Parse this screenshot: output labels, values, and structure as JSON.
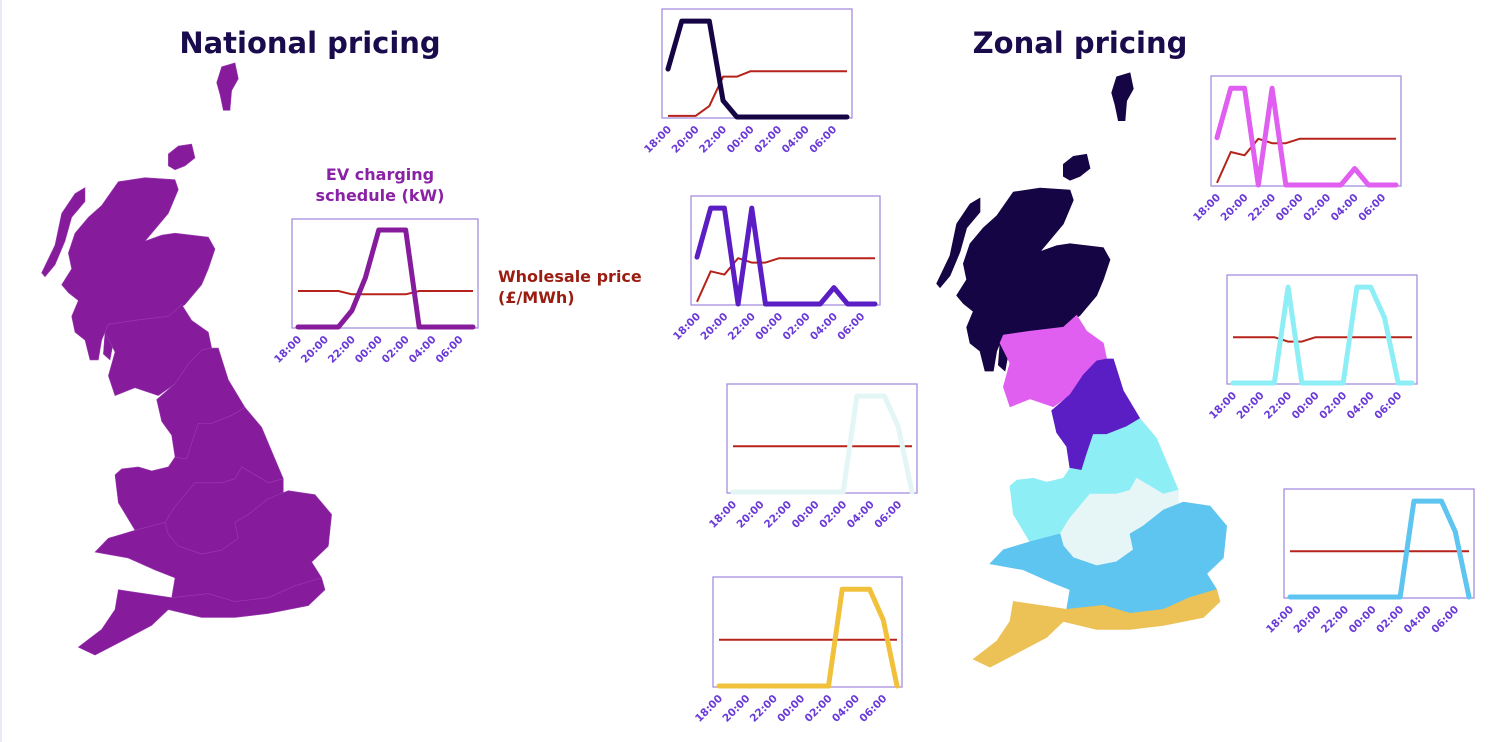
{
  "national": {
    "title": "National pricing",
    "map_color": "#861c9b",
    "ev_label": "EV charging schedule (kW)",
    "ev_label_line1": "EV charging",
    "ev_label_line2": "schedule (kW)",
    "price_label_line1": "Wholesale price",
    "price_label_line2": "(£/MWh)"
  },
  "zonal": {
    "title": "Zonal pricing",
    "zones": [
      {
        "zone": "north-scotland",
        "color": "#160544"
      },
      {
        "zone": "south-scotland",
        "color": "#e05ef0"
      },
      {
        "zone": "north-england",
        "color": "#5a1ec4"
      },
      {
        "zone": "north-wales-and-yorkshire",
        "color": "#8eeef5"
      },
      {
        "zone": "midlands",
        "color": "#e6f6f6"
      },
      {
        "zone": "south-wales-and-south-east",
        "color": "#5ec4f0"
      },
      {
        "zone": "south-west-and-south-coast",
        "color": "#ecc155"
      }
    ]
  },
  "colors": {
    "price_line": "#b5231a",
    "chart_border": "#a58fe0",
    "tick_label": "#6a3ad8"
  },
  "chart_data": [
    {
      "type": "line",
      "id": "national",
      "x": [
        "18:00",
        "19:00",
        "20:00",
        "21:00",
        "22:00",
        "23:00",
        "00:00",
        "01:00",
        "02:00",
        "03:00",
        "04:00",
        "05:00",
        "06:00",
        "07:00"
      ],
      "tick_labels": [
        "18:00",
        "20:00",
        "22:00",
        "00:00",
        "02:00",
        "04:00",
        "06:00"
      ],
      "value_scale": "relative 0-1, no y-axis printed",
      "ev_color": "#861c9b",
      "series": [
        {
          "name": "EV charging schedule (kW)",
          "values": [
            0,
            0,
            0,
            0,
            0.15,
            0.45,
            0.89,
            0.89,
            0.89,
            0,
            0,
            0,
            0,
            0
          ]
        },
        {
          "name": "Wholesale price (£/MWh)",
          "values": [
            0.33,
            0.33,
            0.33,
            0.33,
            0.3,
            0.3,
            0.3,
            0.3,
            0.3,
            0.33,
            0.33,
            0.33,
            0.33,
            0.33
          ]
        }
      ]
    },
    {
      "type": "line",
      "id": "zone-north-scotland",
      "x": [
        "18:00",
        "19:00",
        "20:00",
        "21:00",
        "22:00",
        "23:00",
        "00:00",
        "01:00",
        "02:00",
        "03:00",
        "04:00",
        "05:00",
        "06:00",
        "07:00"
      ],
      "tick_labels": [
        "18:00",
        "20:00",
        "22:00",
        "00:00",
        "02:00",
        "04:00",
        "06:00"
      ],
      "ev_color": "#160544",
      "series": [
        {
          "name": "EV charging schedule (kW)",
          "values": [
            0.44,
            0.88,
            0.88,
            0.88,
            0.15,
            0,
            0,
            0,
            0,
            0,
            0,
            0,
            0,
            0
          ]
        },
        {
          "name": "Wholesale price (£/MWh)",
          "values": [
            0.01,
            0.01,
            0.01,
            0.1,
            0.37,
            0.37,
            0.42,
            0.42,
            0.42,
            0.42,
            0.42,
            0.42,
            0.42,
            0.42
          ]
        }
      ]
    },
    {
      "type": "line",
      "id": "zone-north-england",
      "x": [
        "18:00",
        "19:00",
        "20:00",
        "21:00",
        "22:00",
        "23:00",
        "00:00",
        "01:00",
        "02:00",
        "03:00",
        "04:00",
        "05:00",
        "06:00",
        "07:00"
      ],
      "tick_labels": [
        "18:00",
        "20:00",
        "22:00",
        "00:00",
        "02:00",
        "04:00",
        "06:00"
      ],
      "ev_color": "#5a1ec4",
      "series": [
        {
          "name": "EV charging schedule (kW)",
          "values": [
            0.43,
            0.88,
            0.88,
            0,
            0.88,
            0,
            0,
            0,
            0,
            0,
            0.15,
            0,
            0,
            0
          ]
        },
        {
          "name": "Wholesale price (£/MWh)",
          "values": [
            0.02,
            0.3,
            0.27,
            0.42,
            0.38,
            0.38,
            0.42,
            0.42,
            0.42,
            0.42,
            0.42,
            0.42,
            0.42,
            0.42
          ]
        }
      ]
    },
    {
      "type": "line",
      "id": "zone-midlands",
      "x": [
        "18:00",
        "19:00",
        "20:00",
        "21:00",
        "22:00",
        "23:00",
        "00:00",
        "01:00",
        "02:00",
        "03:00",
        "04:00",
        "05:00",
        "06:00",
        "07:00"
      ],
      "tick_labels": [
        "18:00",
        "20:00",
        "22:00",
        "00:00",
        "02:00",
        "04:00",
        "06:00"
      ],
      "ev_color": "#e3f5f5",
      "series": [
        {
          "name": "EV charging schedule (kW)",
          "values": [
            0,
            0,
            0,
            0,
            0,
            0,
            0,
            0,
            0,
            0.88,
            0.88,
            0.88,
            0.6,
            0
          ]
        },
        {
          "name": "Wholesale price (£/MWh)",
          "values": [
            0.42,
            0.42,
            0.42,
            0.42,
            0.42,
            0.42,
            0.42,
            0.42,
            0.42,
            0.42,
            0.42,
            0.42,
            0.42,
            0.42
          ]
        }
      ]
    },
    {
      "type": "line",
      "id": "zone-south-west",
      "x": [
        "18:00",
        "19:00",
        "20:00",
        "21:00",
        "22:00",
        "23:00",
        "00:00",
        "01:00",
        "02:00",
        "03:00",
        "04:00",
        "05:00",
        "06:00",
        "07:00"
      ],
      "tick_labels": [
        "18:00",
        "20:00",
        "22:00",
        "00:00",
        "02:00",
        "04:00",
        "06:00"
      ],
      "ev_color": "#f2c13c",
      "series": [
        {
          "name": "EV charging schedule (kW)",
          "values": [
            0,
            0,
            0,
            0,
            0,
            0,
            0,
            0,
            0,
            0.88,
            0.88,
            0.88,
            0.6,
            0
          ]
        },
        {
          "name": "Wholesale price (£/MWh)",
          "values": [
            0.42,
            0.42,
            0.42,
            0.42,
            0.42,
            0.42,
            0.42,
            0.42,
            0.42,
            0.42,
            0.42,
            0.42,
            0.42,
            0.42
          ]
        }
      ]
    },
    {
      "type": "line",
      "id": "zone-south-scotland",
      "x": [
        "18:00",
        "19:00",
        "20:00",
        "21:00",
        "22:00",
        "23:00",
        "00:00",
        "01:00",
        "02:00",
        "03:00",
        "04:00",
        "05:00",
        "06:00",
        "07:00"
      ],
      "tick_labels": [
        "18:00",
        "20:00",
        "22:00",
        "00:00",
        "02:00",
        "04:00",
        "06:00"
      ],
      "ev_color": "#e05ef0",
      "series": [
        {
          "name": "EV charging schedule (kW)",
          "values": [
            0.43,
            0.88,
            0.88,
            0,
            0.88,
            0,
            0,
            0,
            0,
            0,
            0.15,
            0,
            0,
            0
          ]
        },
        {
          "name": "Wholesale price (£/MWh)",
          "values": [
            0.02,
            0.3,
            0.27,
            0.42,
            0.38,
            0.38,
            0.42,
            0.42,
            0.42,
            0.42,
            0.42,
            0.42,
            0.42,
            0.42
          ]
        }
      ]
    },
    {
      "type": "line",
      "id": "zone-north-wales-yorkshire",
      "x": [
        "18:00",
        "19:00",
        "20:00",
        "21:00",
        "22:00",
        "23:00",
        "00:00",
        "01:00",
        "02:00",
        "03:00",
        "04:00",
        "05:00",
        "06:00",
        "07:00"
      ],
      "tick_labels": [
        "18:00",
        "20:00",
        "22:00",
        "00:00",
        "02:00",
        "04:00",
        "06:00"
      ],
      "ev_color": "#8eeef5",
      "series": [
        {
          "name": "EV charging schedule (kW)",
          "values": [
            0,
            0,
            0,
            0,
            0.88,
            0,
            0,
            0,
            0,
            0.88,
            0.88,
            0.6,
            0,
            0
          ]
        },
        {
          "name": "Wholesale price (£/MWh)",
          "values": [
            0.42,
            0.42,
            0.42,
            0.42,
            0.38,
            0.38,
            0.42,
            0.42,
            0.42,
            0.42,
            0.42,
            0.42,
            0.42,
            0.42
          ]
        }
      ]
    },
    {
      "type": "line",
      "id": "zone-south-east",
      "x": [
        "18:00",
        "19:00",
        "20:00",
        "21:00",
        "22:00",
        "23:00",
        "00:00",
        "01:00",
        "02:00",
        "03:00",
        "04:00",
        "05:00",
        "06:00",
        "07:00"
      ],
      "tick_labels": [
        "18:00",
        "20:00",
        "22:00",
        "00:00",
        "02:00",
        "04:00",
        "06:00"
      ],
      "ev_color": "#5ec4f0",
      "series": [
        {
          "name": "EV charging schedule (kW)",
          "values": [
            0,
            0,
            0,
            0,
            0,
            0,
            0,
            0,
            0,
            0.88,
            0.88,
            0.88,
            0.6,
            0
          ]
        },
        {
          "name": "Wholesale price (£/MWh)",
          "values": [
            0.42,
            0.42,
            0.42,
            0.42,
            0.42,
            0.42,
            0.42,
            0.42,
            0.42,
            0.42,
            0.42,
            0.42,
            0.42,
            0.42
          ]
        }
      ]
    }
  ]
}
